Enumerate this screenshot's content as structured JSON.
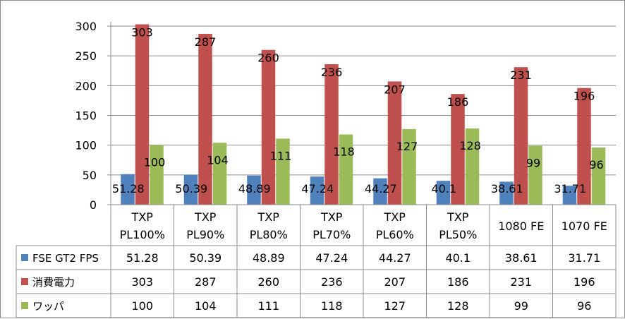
{
  "chart_data": {
    "type": "bar",
    "categories": [
      [
        "TXP",
        "PL100%"
      ],
      [
        "TXP",
        "PL90%"
      ],
      [
        "TXP",
        "PL80%"
      ],
      [
        "TXP",
        "PL70%"
      ],
      [
        "TXP",
        "PL60%"
      ],
      [
        "TXP",
        "PL50%"
      ],
      [
        "1080 FE"
      ],
      [
        "1070 FE"
      ]
    ],
    "series": [
      {
        "name": "FSE GT2 FPS",
        "color": "#4f81bd",
        "values": [
          51.28,
          50.39,
          48.89,
          47.24,
          44.27,
          40.1,
          38.61,
          31.71
        ],
        "labels": [
          "51.28",
          "50.39",
          "48.89",
          "47.24",
          "44.27",
          "40.1",
          "38.61",
          "31.71"
        ]
      },
      {
        "name": "消費電力",
        "color": "#c0504d",
        "values": [
          303,
          287,
          260,
          236,
          207,
          186,
          231,
          196
        ],
        "labels": [
          "303",
          "287",
          "260",
          "236",
          "207",
          "186",
          "231",
          "196"
        ]
      },
      {
        "name": "ワッパ",
        "color": "#9bbb59",
        "values": [
          100,
          104,
          111,
          118,
          127,
          128,
          99,
          96
        ],
        "labels": [
          "100",
          "104",
          "111",
          "118",
          "127",
          "128",
          "99",
          "96"
        ]
      }
    ],
    "yticks": [
      "0",
      "50",
      "100",
      "150",
      "200",
      "250",
      "300"
    ],
    "ylim": [
      0,
      300
    ],
    "grid": true,
    "legend": "data-table"
  }
}
